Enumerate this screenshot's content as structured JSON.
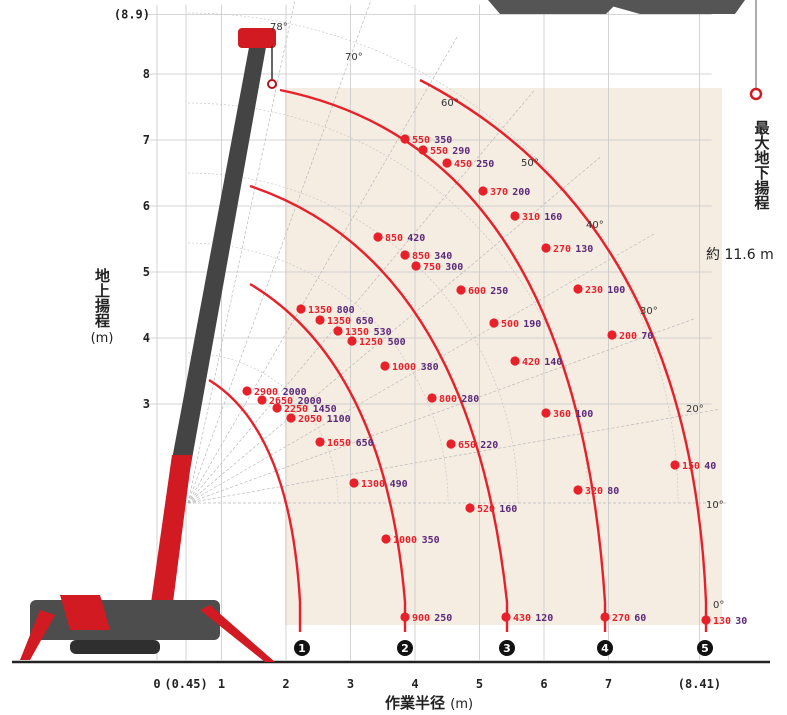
{
  "axes": {
    "x_title": "作業半径",
    "x_unit": "(m)",
    "x_ticks": [
      "0",
      "(0.45)",
      "1",
      "2",
      "3",
      "4",
      "5",
      "6",
      "7",
      "(8.41)"
    ],
    "x_tick_values": [
      0,
      0.45,
      1,
      2,
      3,
      4,
      5,
      6,
      7,
      8.41
    ],
    "y_title": "地上揚程",
    "y_unit": "(m)",
    "y_ticks": [
      "3",
      "4",
      "5",
      "6",
      "7",
      "8",
      "(8.9)"
    ],
    "y_tick_values": [
      3,
      4,
      5,
      6,
      7,
      8,
      8.9
    ],
    "x_range": [
      0,
      8.5
    ],
    "y_range": [
      0,
      8.9
    ]
  },
  "right_label": {
    "title": "最大地下揚程",
    "depth": "約 11.6 m"
  },
  "angle_labels": [
    "78°",
    "70°",
    "60°",
    "50°",
    "40°",
    "30°",
    "20°",
    "10°",
    "0°"
  ],
  "colors": {
    "curve": "#e8202a",
    "point": "#e8202a",
    "value_red": "#e8202a",
    "value_purple": "#5a2a7a",
    "crane_red": "#d11a22",
    "crane_dark": "#444444",
    "grid": "#c8c8c8",
    "panel": "#f3ebe1"
  },
  "chart_data": {
    "type": "scatter",
    "booms": [
      {
        "label": "1",
        "points": [
          {
            "a": "2900",
            "b": "2000"
          },
          {
            "a": "2650",
            "b": "2000"
          },
          {
            "a": "2250",
            "b": "1450"
          },
          {
            "a": "2050",
            "b": "1100"
          }
        ]
      },
      {
        "label": "2",
        "points": [
          {
            "a": "1350",
            "b": "800"
          },
          {
            "a": "1350",
            "b": "650"
          },
          {
            "a": "1350",
            "b": "530"
          },
          {
            "a": "1250",
            "b": "500"
          },
          {
            "a": "1650",
            "b": "650"
          },
          {
            "a": "1300",
            "b": "490"
          },
          {
            "a": "1000",
            "b": "350"
          },
          {
            "a": "900",
            "b": "250"
          }
        ]
      },
      {
        "label": "3",
        "points": [
          {
            "a": "850",
            "b": "420"
          },
          {
            "a": "850",
            "b": "340"
          },
          {
            "a": "1000",
            "b": "380"
          },
          {
            "a": "800",
            "b": "280"
          },
          {
            "a": "650",
            "b": "220"
          },
          {
            "a": "520",
            "b": "160"
          },
          {
            "a": "430",
            "b": "120"
          }
        ]
      },
      {
        "label": "4",
        "points": [
          {
            "a": "550",
            "b": "350"
          },
          {
            "a": "550",
            "b": "290"
          },
          {
            "a": "450",
            "b": "250"
          },
          {
            "a": "750",
            "b": "300"
          },
          {
            "a": "600",
            "b": "250"
          },
          {
            "a": "500",
            "b": "190"
          },
          {
            "a": "420",
            "b": "140"
          },
          {
            "a": "360",
            "b": "100"
          },
          {
            "a": "320",
            "b": "80"
          },
          {
            "a": "270",
            "b": "60"
          }
        ]
      },
      {
        "label": "5",
        "points": [
          {
            "a": "370",
            "b": "200"
          },
          {
            "a": "310",
            "b": "160"
          },
          {
            "a": "270",
            "b": "130"
          },
          {
            "a": "230",
            "b": "100"
          },
          {
            "a": "200",
            "b": "70"
          },
          {
            "a": "150",
            "b": "40"
          },
          {
            "a": "130",
            "b": "30"
          }
        ]
      }
    ]
  }
}
